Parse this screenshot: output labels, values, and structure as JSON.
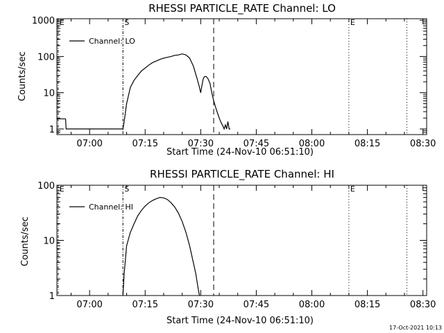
{
  "footer": {
    "timestamp": "17-Oct-2021 10:13"
  },
  "chart_data": [
    {
      "type": "line",
      "title": "RHESSI PARTICLE_RATE Channel: LO",
      "xlabel": "Start Time (24-Nov-10 06:51:10)",
      "ylabel": "Counts/sec",
      "y_scale": "log",
      "xlim": [
        "06:51:10",
        "08:31:00"
      ],
      "ylim": [
        0.7,
        1100
      ],
      "x_ticks": [
        "07:00",
        "07:15",
        "07:30",
        "07:45",
        "08:00",
        "08:15",
        "08:30"
      ],
      "y_ticks": [
        "1",
        "10",
        "100",
        "1000"
      ],
      "legend": {
        "position": "top-left",
        "entries": [
          "Channel: LO"
        ]
      },
      "markers": [
        {
          "label": "E",
          "time": "06:51:30",
          "style": "dashdot"
        },
        {
          "label": "S",
          "time": "07:09:00",
          "style": "dashdot"
        },
        {
          "label": "",
          "time": "07:33:30",
          "style": "dashed"
        },
        {
          "label": "E",
          "time": "08:10:00",
          "style": "dotted"
        },
        {
          "label": "",
          "time": "08:25:40",
          "style": "dotted"
        }
      ],
      "series": [
        {
          "name": "Channel: LO",
          "x": [
            "06:51:10",
            "06:52:00",
            "06:53:00",
            "06:53:30",
            "06:53:40",
            "07:09:00",
            "07:09:20",
            "07:10:00",
            "07:11:00",
            "07:12:00",
            "07:13:00",
            "07:14:00",
            "07:15:00",
            "07:16:00",
            "07:17:00",
            "07:18:00",
            "07:19:00",
            "07:20:00",
            "07:21:00",
            "07:22:00",
            "07:23:00",
            "07:24:00",
            "07:25:00",
            "07:26:00",
            "07:27:00",
            "07:28:00",
            "07:29:00",
            "07:29:40",
            "07:30:00",
            "07:30:20",
            "07:30:40",
            "07:31:00",
            "07:31:30",
            "07:32:00",
            "07:32:30",
            "07:33:00",
            "07:33:30",
            "07:34:00",
            "07:34:30",
            "07:35:00",
            "07:35:30",
            "07:36:00",
            "07:36:20",
            "07:36:40",
            "07:37:00",
            "07:37:20",
            "07:37:40",
            "07:38:00"
          ],
          "y": [
            1.9,
            1.9,
            1.9,
            1.9,
            1,
            1,
            1.6,
            5,
            14,
            22,
            30,
            40,
            48,
            58,
            68,
            75,
            83,
            90,
            95,
            100,
            108,
            110,
            118,
            110,
            90,
            55,
            25,
            14,
            10,
            16,
            24,
            28,
            28,
            24,
            18,
            10,
            6,
            4,
            2.8,
            2,
            1.5,
            1.2,
            1,
            1.3,
            1,
            1.6,
            1,
            1
          ]
        }
      ]
    },
    {
      "type": "line",
      "title": "RHESSI PARTICLE_RATE Channel: HI",
      "xlabel": "Start Time (24-Nov-10 06:51:10)",
      "ylabel": "Counts/sec",
      "y_scale": "log",
      "xlim": [
        "06:51:10",
        "08:31:00"
      ],
      "ylim": [
        1,
        100
      ],
      "x_ticks": [
        "07:00",
        "07:15",
        "07:30",
        "07:45",
        "08:00",
        "08:15",
        "08:30"
      ],
      "y_ticks": [
        "1",
        "10",
        "100"
      ],
      "legend": {
        "position": "top-left",
        "entries": [
          "Channel: HI"
        ]
      },
      "markers": [
        {
          "label": "E",
          "time": "06:51:30",
          "style": "dashdot"
        },
        {
          "label": "S",
          "time": "07:09:00",
          "style": "dashdot"
        },
        {
          "label": "",
          "time": "07:33:30",
          "style": "dashed"
        },
        {
          "label": "E",
          "time": "08:10:00",
          "style": "dotted"
        },
        {
          "label": "",
          "time": "08:25:40",
          "style": "dotted"
        }
      ],
      "series": [
        {
          "name": "Channel: HI",
          "x": [
            "07:09:00",
            "07:09:20",
            "07:10:00",
            "07:11:00",
            "07:12:00",
            "07:13:00",
            "07:14:00",
            "07:15:00",
            "07:16:00",
            "07:17:00",
            "07:18:00",
            "07:19:00",
            "07:20:00",
            "07:21:00",
            "07:22:00",
            "07:23:00",
            "07:24:00",
            "07:25:00",
            "07:26:00",
            "07:27:00",
            "07:28:00",
            "07:28:40",
            "07:29:00",
            "07:29:20",
            "07:29:40"
          ],
          "y": [
            1,
            2.5,
            8,
            14,
            20,
            28,
            35,
            42,
            48,
            53,
            57,
            60,
            59,
            55,
            48,
            40,
            31,
            22,
            14,
            8,
            4,
            2.5,
            1.8,
            1.3,
            1
          ]
        }
      ]
    }
  ]
}
